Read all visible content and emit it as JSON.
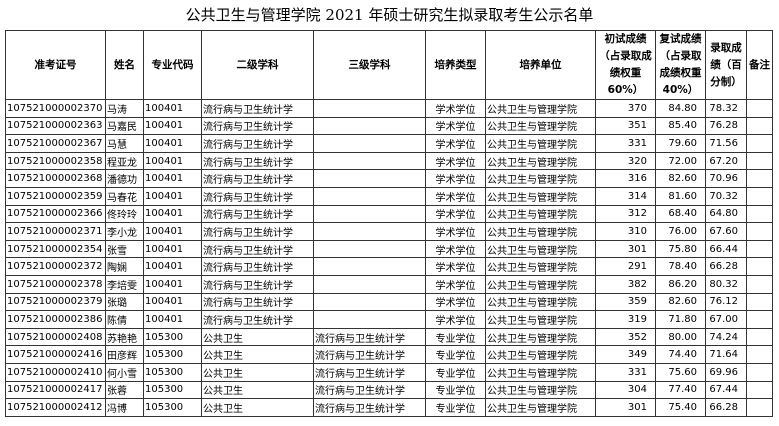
{
  "title": "公共卫生与管理学院 2021 年硕士研究生拟录取考生公示名单",
  "headers": [
    "准考证号",
    "姓名",
    "专业代码",
    "二级学科",
    "三级学科",
    "培养类型",
    "培养单位",
    "初试成绩（占录取成绩权重60%）",
    "复试成绩（占录取成绩权重40%）",
    "录取成绩（百分制）",
    "备注"
  ],
  "rows": [
    [
      "107521000002370",
      "马涛",
      "100401",
      "流行病与卫生统计学",
      "",
      "学术学位",
      "公共卫生与管理学院",
      "370",
      "84.80",
      "78.32",
      ""
    ],
    [
      "107521000002363",
      "马嘉民",
      "100401",
      "流行病与卫生统计学",
      "",
      "学术学位",
      "公共卫生与管理学院",
      "351",
      "85.40",
      "76.28",
      ""
    ],
    [
      "107521000002367",
      "马慧",
      "100401",
      "流行病与卫生统计学",
      "",
      "学术学位",
      "公共卫生与管理学院",
      "331",
      "79.60",
      "71.56",
      ""
    ],
    [
      "107521000002358",
      "程亚龙",
      "100401",
      "流行病与卫生统计学",
      "",
      "学术学位",
      "公共卫生与管理学院",
      "320",
      "72.00",
      "67.20",
      ""
    ],
    [
      "107521000002368",
      "潘德功",
      "100401",
      "流行病与卫生统计学",
      "",
      "学术学位",
      "公共卫生与管理学院",
      "316",
      "82.60",
      "70.96",
      ""
    ],
    [
      "107521000002359",
      "马春花",
      "100401",
      "流行病与卫生统计学",
      "",
      "学术学位",
      "公共卫生与管理学院",
      "314",
      "81.60",
      "70.32",
      ""
    ],
    [
      "107521000002366",
      "佟玲玲",
      "100401",
      "流行病与卫生统计学",
      "",
      "学术学位",
      "公共卫生与管理学院",
      "312",
      "68.40",
      "64.80",
      ""
    ],
    [
      "107521000002371",
      "李小龙",
      "100401",
      "流行病与卫生统计学",
      "",
      "学术学位",
      "公共卫生与管理学院",
      "310",
      "76.00",
      "67.60",
      ""
    ],
    [
      "107521000002354",
      "张雪",
      "100401",
      "流行病与卫生统计学",
      "",
      "学术学位",
      "公共卫生与管理学院",
      "301",
      "75.80",
      "66.44",
      ""
    ],
    [
      "107521000002372",
      "陶娴",
      "100401",
      "流行病与卫生统计学",
      "",
      "学术学位",
      "公共卫生与管理学院",
      "291",
      "78.40",
      "66.28",
      ""
    ],
    [
      "107521000002378",
      "李培雯",
      "100401",
      "流行病与卫生统计学",
      "",
      "学术学位",
      "公共卫生与管理学院",
      "382",
      "86.20",
      "80.32",
      ""
    ],
    [
      "107521000002379",
      "张璐",
      "100401",
      "流行病与卫生统计学",
      "",
      "学术学位",
      "公共卫生与管理学院",
      "359",
      "82.60",
      "76.12",
      ""
    ],
    [
      "107521000002386",
      "陈倩",
      "100401",
      "流行病与卫生统计学",
      "",
      "学术学位",
      "公共卫生与管理学院",
      "319",
      "71.80",
      "67.00",
      ""
    ],
    [
      "107521000002408",
      "苏艳艳",
      "105300",
      "公共卫生",
      "流行病与卫生统计学",
      "专业学位",
      "公共卫生与管理学院",
      "352",
      "80.00",
      "74.24",
      ""
    ],
    [
      "107521000002416",
      "田彦辉",
      "105300",
      "公共卫生",
      "流行病与卫生统计学",
      "专业学位",
      "公共卫生与管理学院",
      "349",
      "74.40",
      "71.64",
      ""
    ],
    [
      "107521000002410",
      "何小雪",
      "105300",
      "公共卫生",
      "流行病与卫生统计学",
      "专业学位",
      "公共卫生与管理学院",
      "331",
      "75.60",
      "69.96",
      ""
    ],
    [
      "107521000002417",
      "张蓉",
      "105300",
      "公共卫生",
      "流行病与卫生统计学",
      "专业学位",
      "公共卫生与管理学院",
      "304",
      "77.40",
      "67.44",
      ""
    ],
    [
      "107521000002412",
      "冯博",
      "105300",
      "公共卫生",
      "流行病与卫生统计学",
      "专业学位",
      "公共卫生与管理学院",
      "301",
      "75.40",
      "66.28",
      ""
    ]
  ]
}
